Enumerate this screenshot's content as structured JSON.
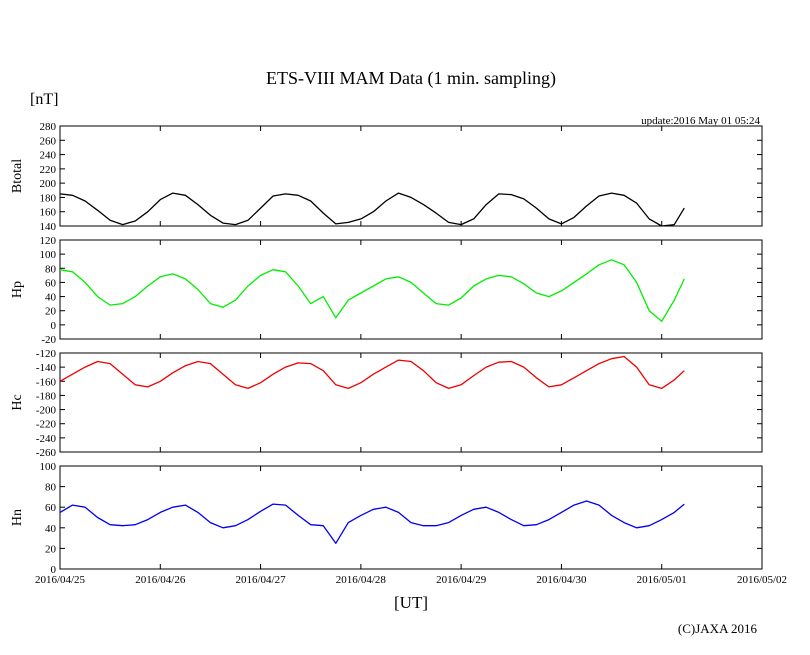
{
  "title": "ETS-VIII MAM Data (1 min. sampling)",
  "unit_label": "[nT]",
  "update_label": "update:2016 May 01 05:24",
  "xlabel": "[UT]",
  "copyright": "(C)JAXA 2016",
  "x_ticks": [
    "2016/04/25",
    "2016/04/26",
    "2016/04/27",
    "2016/04/28",
    "2016/04/29",
    "2016/04/30",
    "2016/05/01",
    "2016/05/02"
  ],
  "chart_data": [
    {
      "type": "line",
      "ylabel": "Btotal",
      "ylim": [
        140,
        280
      ],
      "yticks": [
        140,
        160,
        180,
        200,
        220,
        240,
        260,
        280
      ],
      "xlim": [
        "2016/04/25",
        "2016/05/02"
      ],
      "color": "#000000",
      "series": [
        {
          "x": [
            "2016/04/25 00:00",
            "2016/04/25 03:00",
            "2016/04/25 06:00",
            "2016/04/25 09:00",
            "2016/04/25 12:00",
            "2016/04/25 15:00",
            "2016/04/25 18:00",
            "2016/04/25 21:00",
            "2016/04/26 00:00",
            "2016/04/26 03:00",
            "2016/04/26 06:00",
            "2016/04/26 09:00",
            "2016/04/26 12:00",
            "2016/04/26 15:00",
            "2016/04/26 18:00",
            "2016/04/26 21:00",
            "2016/04/27 00:00",
            "2016/04/27 03:00",
            "2016/04/27 06:00",
            "2016/04/27 09:00",
            "2016/04/27 12:00",
            "2016/04/27 15:00",
            "2016/04/27 18:00",
            "2016/04/27 21:00",
            "2016/04/28 00:00",
            "2016/04/28 03:00",
            "2016/04/28 06:00",
            "2016/04/28 09:00",
            "2016/04/28 12:00",
            "2016/04/28 15:00",
            "2016/04/28 18:00",
            "2016/04/28 21:00",
            "2016/04/29 00:00",
            "2016/04/29 03:00",
            "2016/04/29 06:00",
            "2016/04/29 09:00",
            "2016/04/29 12:00",
            "2016/04/29 15:00",
            "2016/04/29 18:00",
            "2016/04/29 21:00",
            "2016/04/30 00:00",
            "2016/04/30 03:00",
            "2016/04/30 06:00",
            "2016/04/30 09:00",
            "2016/04/30 12:00",
            "2016/04/30 15:00",
            "2016/04/30 18:00",
            "2016/04/30 21:00",
            "2016/05/01 00:00",
            "2016/05/01 03:00",
            "2016/05/01 05:24"
          ],
          "y": [
            185,
            183,
            175,
            162,
            148,
            142,
            147,
            160,
            177,
            186,
            183,
            170,
            155,
            144,
            142,
            148,
            165,
            182,
            185,
            183,
            175,
            158,
            143,
            145,
            150,
            160,
            175,
            186,
            180,
            170,
            158,
            145,
            142,
            150,
            170,
            185,
            184,
            178,
            165,
            150,
            143,
            152,
            168,
            182,
            186,
            183,
            172,
            150,
            140,
            142,
            165
          ]
        }
      ]
    },
    {
      "type": "line",
      "ylabel": "Hp",
      "ylim": [
        -20,
        120
      ],
      "yticks": [
        -20,
        0,
        20,
        40,
        60,
        80,
        100,
        120
      ],
      "xlim": [
        "2016/04/25",
        "2016/05/02"
      ],
      "color": "#00ee00",
      "series": [
        {
          "x": [
            "2016/04/25 00:00",
            "2016/04/25 03:00",
            "2016/04/25 06:00",
            "2016/04/25 09:00",
            "2016/04/25 12:00",
            "2016/04/25 15:00",
            "2016/04/25 18:00",
            "2016/04/25 21:00",
            "2016/04/26 00:00",
            "2016/04/26 03:00",
            "2016/04/26 06:00",
            "2016/04/26 09:00",
            "2016/04/26 12:00",
            "2016/04/26 15:00",
            "2016/04/26 18:00",
            "2016/04/26 21:00",
            "2016/04/27 00:00",
            "2016/04/27 03:00",
            "2016/04/27 06:00",
            "2016/04/27 09:00",
            "2016/04/27 12:00",
            "2016/04/27 15:00",
            "2016/04/27 18:00",
            "2016/04/27 21:00",
            "2016/04/28 00:00",
            "2016/04/28 03:00",
            "2016/04/28 06:00",
            "2016/04/28 09:00",
            "2016/04/28 12:00",
            "2016/04/28 15:00",
            "2016/04/28 18:00",
            "2016/04/28 21:00",
            "2016/04/29 00:00",
            "2016/04/29 03:00",
            "2016/04/29 06:00",
            "2016/04/29 09:00",
            "2016/04/29 12:00",
            "2016/04/29 15:00",
            "2016/04/29 18:00",
            "2016/04/29 21:00",
            "2016/04/30 00:00",
            "2016/04/30 03:00",
            "2016/04/30 06:00",
            "2016/04/30 09:00",
            "2016/04/30 12:00",
            "2016/04/30 15:00",
            "2016/04/30 18:00",
            "2016/04/30 21:00",
            "2016/05/01 00:00",
            "2016/05/01 03:00",
            "2016/05/01 05:24"
          ],
          "y": [
            78,
            75,
            60,
            40,
            28,
            30,
            40,
            55,
            68,
            72,
            65,
            50,
            30,
            25,
            35,
            55,
            70,
            78,
            75,
            55,
            30,
            40,
            10,
            35,
            45,
            55,
            65,
            68,
            60,
            45,
            30,
            28,
            38,
            55,
            65,
            70,
            68,
            58,
            45,
            40,
            48,
            60,
            72,
            85,
            92,
            85,
            60,
            20,
            5,
            35,
            65
          ]
        }
      ]
    },
    {
      "type": "line",
      "ylabel": "Hc",
      "ylim": [
        -260,
        -120
      ],
      "yticks": [
        -260,
        -240,
        -220,
        -200,
        -180,
        -160,
        -140,
        -120
      ],
      "xlim": [
        "2016/04/25",
        "2016/05/02"
      ],
      "color": "#ee0000",
      "series": [
        {
          "x": [
            "2016/04/25 00:00",
            "2016/04/25 03:00",
            "2016/04/25 06:00",
            "2016/04/25 09:00",
            "2016/04/25 12:00",
            "2016/04/25 15:00",
            "2016/04/25 18:00",
            "2016/04/25 21:00",
            "2016/04/26 00:00",
            "2016/04/26 03:00",
            "2016/04/26 06:00",
            "2016/04/26 09:00",
            "2016/04/26 12:00",
            "2016/04/26 15:00",
            "2016/04/26 18:00",
            "2016/04/26 21:00",
            "2016/04/27 00:00",
            "2016/04/27 03:00",
            "2016/04/27 06:00",
            "2016/04/27 09:00",
            "2016/04/27 12:00",
            "2016/04/27 15:00",
            "2016/04/27 18:00",
            "2016/04/27 21:00",
            "2016/04/28 00:00",
            "2016/04/28 03:00",
            "2016/04/28 06:00",
            "2016/04/28 09:00",
            "2016/04/28 12:00",
            "2016/04/28 15:00",
            "2016/04/28 18:00",
            "2016/04/28 21:00",
            "2016/04/29 00:00",
            "2016/04/29 03:00",
            "2016/04/29 06:00",
            "2016/04/29 09:00",
            "2016/04/29 12:00",
            "2016/04/29 15:00",
            "2016/04/29 18:00",
            "2016/04/29 21:00",
            "2016/04/30 00:00",
            "2016/04/30 03:00",
            "2016/04/30 06:00",
            "2016/04/30 09:00",
            "2016/04/30 12:00",
            "2016/04/30 15:00",
            "2016/04/30 18:00",
            "2016/04/30 21:00",
            "2016/05/01 00:00",
            "2016/05/01 03:00",
            "2016/05/01 05:24"
          ],
          "y": [
            -160,
            -150,
            -140,
            -132,
            -135,
            -150,
            -165,
            -168,
            -160,
            -148,
            -138,
            -132,
            -135,
            -150,
            -165,
            -170,
            -162,
            -150,
            -140,
            -134,
            -135,
            -145,
            -165,
            -170,
            -162,
            -150,
            -140,
            -130,
            -132,
            -145,
            -162,
            -170,
            -165,
            -152,
            -140,
            -133,
            -132,
            -140,
            -155,
            -168,
            -165,
            -155,
            -145,
            -135,
            -128,
            -125,
            -140,
            -165,
            -170,
            -158,
            -145
          ]
        }
      ]
    },
    {
      "type": "line",
      "ylabel": "Hn",
      "ylim": [
        0,
        100
      ],
      "yticks": [
        0,
        20,
        40,
        60,
        80,
        100
      ],
      "xlim": [
        "2016/04/25",
        "2016/05/02"
      ],
      "color": "#0000ee",
      "series": [
        {
          "x": [
            "2016/04/25 00:00",
            "2016/04/25 03:00",
            "2016/04/25 06:00",
            "2016/04/25 09:00",
            "2016/04/25 12:00",
            "2016/04/25 15:00",
            "2016/04/25 18:00",
            "2016/04/25 21:00",
            "2016/04/26 00:00",
            "2016/04/26 03:00",
            "2016/04/26 06:00",
            "2016/04/26 09:00",
            "2016/04/26 12:00",
            "2016/04/26 15:00",
            "2016/04/26 18:00",
            "2016/04/26 21:00",
            "2016/04/27 00:00",
            "2016/04/27 03:00",
            "2016/04/27 06:00",
            "2016/04/27 09:00",
            "2016/04/27 12:00",
            "2016/04/27 15:00",
            "2016/04/27 18:00",
            "2016/04/27 21:00",
            "2016/04/28 00:00",
            "2016/04/28 03:00",
            "2016/04/28 06:00",
            "2016/04/28 09:00",
            "2016/04/28 12:00",
            "2016/04/28 15:00",
            "2016/04/28 18:00",
            "2016/04/28 21:00",
            "2016/04/29 00:00",
            "2016/04/29 03:00",
            "2016/04/29 06:00",
            "2016/04/29 09:00",
            "2016/04/29 12:00",
            "2016/04/29 15:00",
            "2016/04/29 18:00",
            "2016/04/29 21:00",
            "2016/04/30 00:00",
            "2016/04/30 03:00",
            "2016/04/30 06:00",
            "2016/04/30 09:00",
            "2016/04/30 12:00",
            "2016/04/30 15:00",
            "2016/04/30 18:00",
            "2016/04/30 21:00",
            "2016/05/01 00:00",
            "2016/05/01 03:00",
            "2016/05/01 05:24"
          ],
          "y": [
            55,
            62,
            60,
            50,
            43,
            42,
            43,
            48,
            55,
            60,
            62,
            55,
            45,
            40,
            42,
            48,
            56,
            63,
            62,
            52,
            43,
            42,
            25,
            45,
            52,
            58,
            60,
            55,
            45,
            42,
            42,
            45,
            52,
            58,
            60,
            55,
            48,
            42,
            43,
            48,
            55,
            62,
            66,
            62,
            52,
            45,
            40,
            42,
            48,
            55,
            63
          ]
        }
      ]
    }
  ]
}
